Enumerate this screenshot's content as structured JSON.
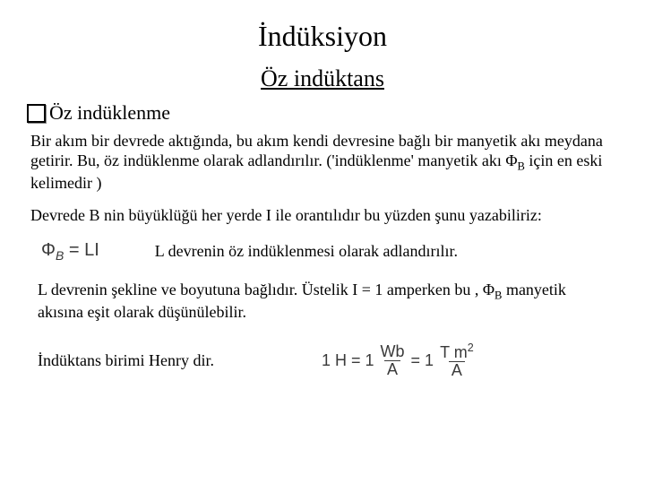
{
  "title": "İndüksiyon",
  "subtitle": "Öz indüktans",
  "bullet": "Öz indüklenme",
  "p1": "Bir akım bir devrede aktığında, bu akım  kendi devresine bağlı bir manyetik akı meydana getirir. Bu, öz indüklenme olarak adlandırılır. ('indüklenme' manyetik akı Φ",
  "p1_sub": "B",
  "p1_tail": " için en eski kelimedir )",
  "p2": "Devrede B nin büyüklüğü  her yerde  I ile orantılıdır bu yüzden şunu yazabiliriz:",
  "eq1_lhs": "Φ",
  "eq1_sub": "B",
  "eq1_rhs": " = LI",
  "eq1_caption": "L devrenin öz indüklenmesi olarak adlandırılır.",
  "p3_a": "L devrenin şekline ve boyutuna bağlıdır.  Üstelik I = 1 amperken bu , Φ",
  "p3_sub": "B",
  "p3_b": " manyetik akısına  eşit olarak düşünülebilir.",
  "unit_text": "İndüktans birimi   Henry dir.",
  "eq2": {
    "lead": "1 H = 1",
    "num1": "Wb",
    "den1": "A",
    "mid": "= 1",
    "num2": "T m",
    "num2_sup": "2",
    "den2": "A"
  }
}
